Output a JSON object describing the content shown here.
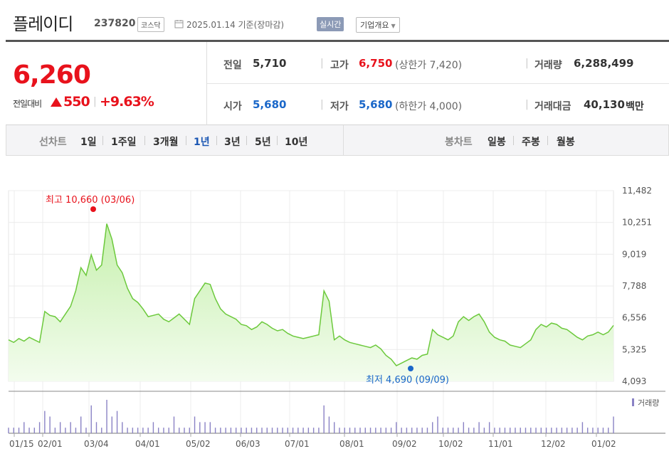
{
  "header": {
    "name": "플레이디",
    "code": "237820",
    "market": "코스닥",
    "date_label": "2025.01.14 기준(장마감)",
    "live_label": "실시간",
    "info_label": "기업개요"
  },
  "quote": {
    "price": "6,260",
    "change_label": "전일대비",
    "change_amount": "550",
    "change_pct": "+9.63%",
    "direction": "up",
    "cells": {
      "prev_label": "전일",
      "prev_value": "5,710",
      "high_label": "고가",
      "high_value": "6,750",
      "upper_limit": "(상한가 7,420)",
      "volume_label": "거래량",
      "volume_value": "6,288,499",
      "open_label": "시가",
      "open_value": "5,680",
      "low_label": "저가",
      "low_value": "5,680",
      "lower_limit": "(하한가 4,000)",
      "amount_label": "거래대금",
      "amount_value": "40,130",
      "amount_unit": "백만"
    },
    "colors": {
      "up": "#e8121c",
      "down": "#1a67c9"
    }
  },
  "tabs": {
    "line_label": "선차트",
    "line_tabs": [
      "1일",
      "1주일",
      "3개월",
      "1년",
      "3년",
      "5년",
      "10년"
    ],
    "active_tab": "1년",
    "candle_label": "봉차트",
    "candle_tabs": [
      "일봉",
      "주봉",
      "월봉"
    ]
  },
  "chart_data": {
    "type": "area",
    "y_ticks": [
      "11,482",
      "10,251",
      "9,019",
      "7,788",
      "6,556",
      "5,325",
      "4,093"
    ],
    "ylim": [
      4093,
      11482
    ],
    "x_ticks": [
      "01/15",
      "02/01",
      "03/04",
      "04/01",
      "05/02",
      "06/03",
      "07/01",
      "08/01",
      "09/02",
      "10/02",
      "11/01",
      "12/02",
      "01/02"
    ],
    "high_annotation": "최고 10,660 (03/06)",
    "low_annotation": "최저 4,690 (09/09)",
    "volume_legend": "거래량",
    "price": [
      5700,
      5600,
      5750,
      5650,
      5800,
      5700,
      5600,
      6800,
      6650,
      6600,
      6400,
      6700,
      7000,
      7600,
      8500,
      8200,
      9000,
      8400,
      8600,
      10200,
      9600,
      8600,
      8300,
      7700,
      7300,
      7150,
      6900,
      6600,
      6650,
      6700,
      6500,
      6400,
      6550,
      6700,
      6500,
      6300,
      7300,
      7600,
      7900,
      7850,
      7300,
      6900,
      6700,
      6600,
      6500,
      6300,
      6250,
      6100,
      6200,
      6400,
      6300,
      6150,
      6050,
      6100,
      5950,
      5850,
      5800,
      5750,
      5800,
      5850,
      5900,
      7600,
      7200,
      5700,
      5850,
      5700,
      5600,
      5550,
      5500,
      5450,
      5400,
      5500,
      5350,
      5100,
      4950,
      4700,
      4800,
      4900,
      5000,
      4950,
      5100,
      5150,
      6100,
      5900,
      5800,
      5700,
      5850,
      6400,
      6600,
      6450,
      6600,
      6700,
      6400,
      6000,
      5800,
      5700,
      5650,
      5500,
      5450,
      5400,
      5550,
      5700,
      6100,
      6300,
      6200,
      6350,
      6300,
      6150,
      6100,
      5950,
      5800,
      5700,
      5850,
      5900,
      6000,
      5900,
      6000,
      6260
    ],
    "volume": [
      1,
      1,
      1,
      2,
      1,
      1,
      2,
      4,
      3,
      1,
      2,
      1,
      2,
      1,
      3,
      1,
      5,
      2,
      1,
      6,
      3,
      4,
      2,
      1,
      1,
      1,
      1,
      1,
      2,
      1,
      1,
      1,
      3,
      1,
      1,
      1,
      3,
      2,
      2,
      2,
      1,
      1,
      1,
      1,
      1,
      1,
      1,
      1,
      1,
      1,
      1,
      1,
      1,
      1,
      1,
      1,
      1,
      1,
      1,
      1,
      1,
      5,
      3,
      2,
      1,
      1,
      1,
      1,
      1,
      1,
      1,
      1,
      1,
      1,
      1,
      2,
      1,
      1,
      1,
      1,
      1,
      1,
      2,
      3,
      1,
      1,
      1,
      1,
      2,
      1,
      1,
      2,
      1,
      2,
      1,
      1,
      1,
      1,
      1,
      1,
      1,
      1,
      1,
      1,
      1,
      1,
      1,
      1,
      1,
      1,
      1,
      2,
      1,
      1,
      1,
      1,
      1,
      3
    ]
  }
}
